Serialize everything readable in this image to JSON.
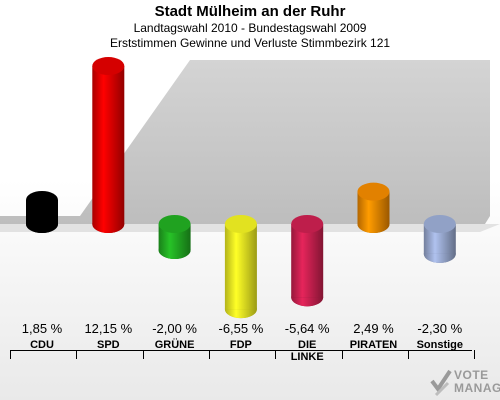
{
  "header": {
    "title": "Stadt Mülheim an der Ruhr",
    "subtitle": "Landtagswahl 2010 - Bundestagswahl 2009",
    "subtitle2": "Erststimmen Gewinne und Verluste Stimmbezirk 121"
  },
  "chart_data": {
    "type": "bar",
    "title": "Stadt Mülheim an der Ruhr",
    "subtitle": "Landtagswahl 2010 - Bundestagswahl 2009 / Erststimmen Gewinne und Verluste Stimmbezirk 121",
    "categories": [
      "CDU",
      "SPD",
      "GRÜNE",
      "FDP",
      "DIE LINKE",
      "PIRATEN",
      "Sonstige"
    ],
    "values": [
      1.85,
      12.15,
      -2.0,
      -6.55,
      -5.64,
      2.49,
      -2.3
    ],
    "value_labels": [
      "1,85 %",
      "12,15 %",
      "-2,00 %",
      "-6,55 %",
      "-5,64 %",
      "2,49 %",
      "-2,30 %"
    ],
    "colors": [
      "#000000",
      "#e00000",
      "#22aa22",
      "#eeee22",
      "#c8204f",
      "#ee8800",
      "#99a9d0"
    ],
    "grid": false,
    "legend": "none"
  },
  "logo": {
    "text_line1": "VOTE",
    "text_line2": "MANAGER"
  }
}
